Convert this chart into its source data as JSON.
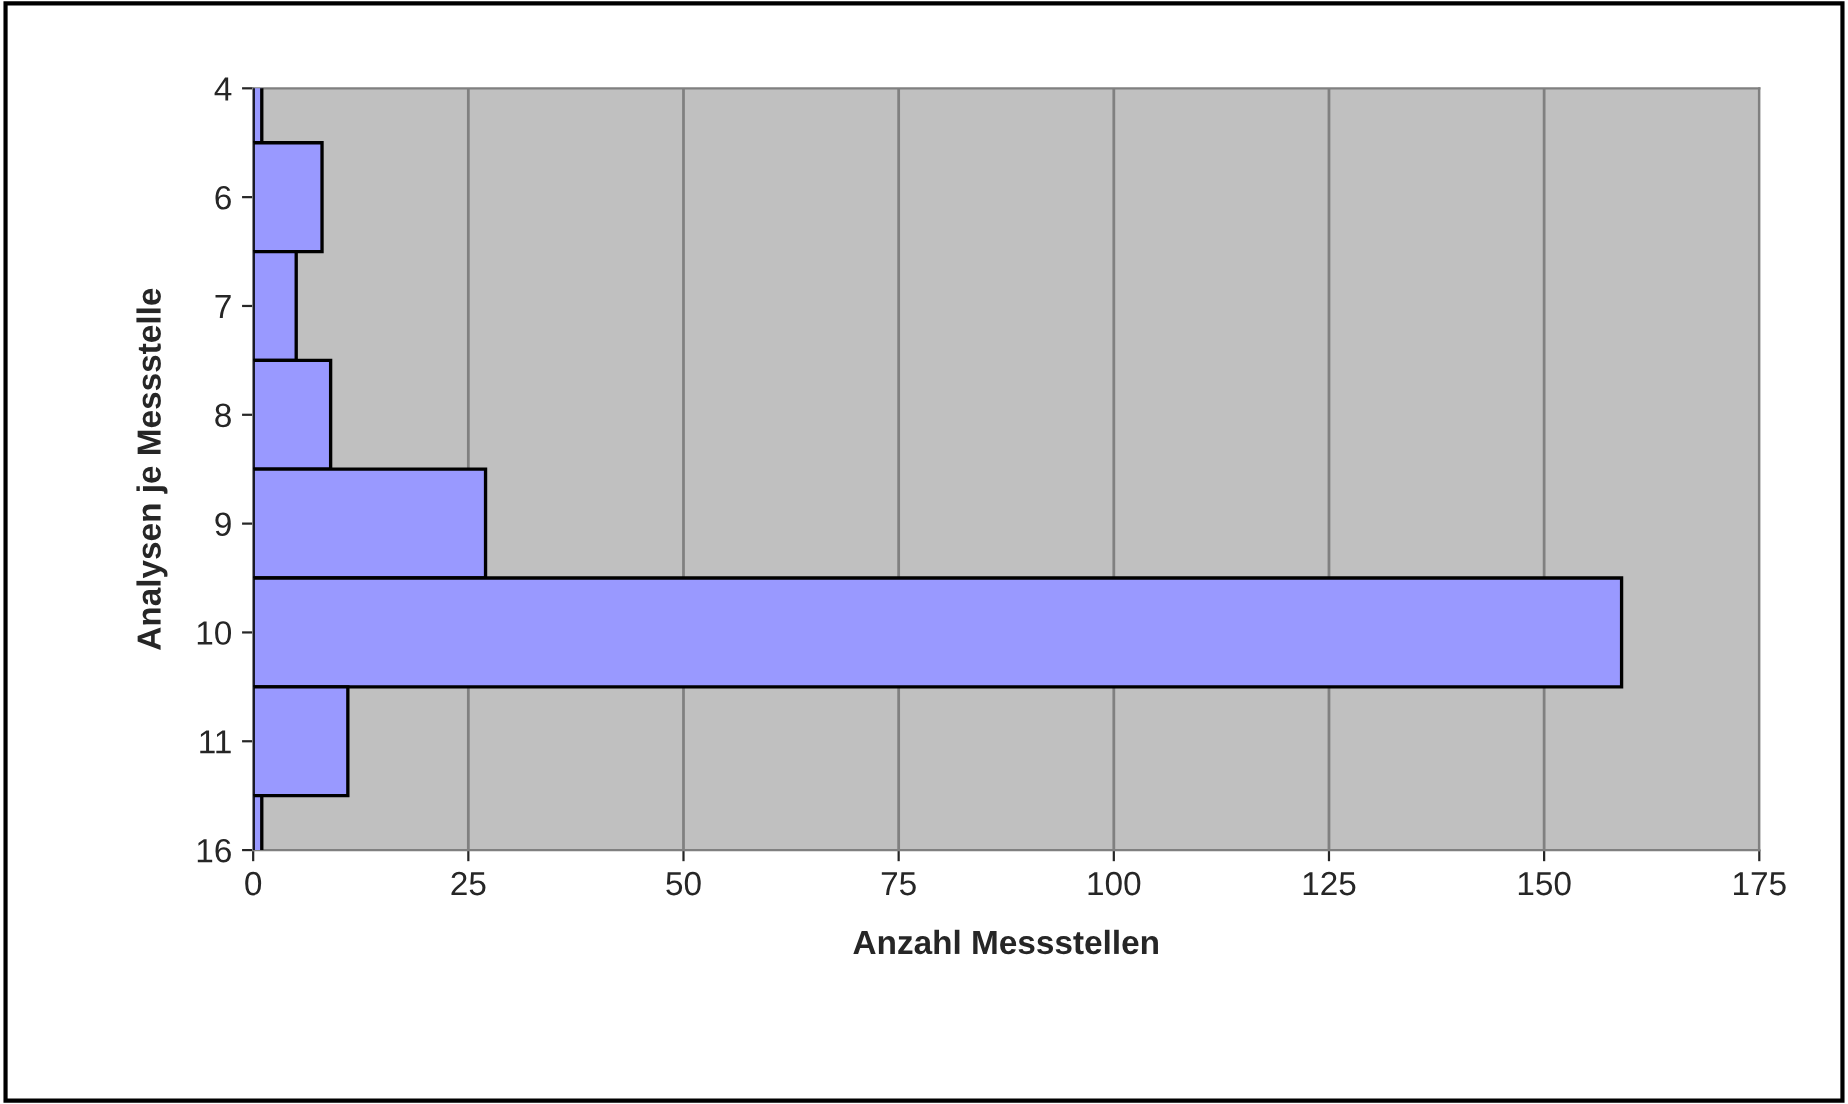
{
  "chart_data": {
    "type": "bar",
    "orientation": "horizontal",
    "xlabel": "Anzahl Messstellen",
    "ylabel": "Analysen je Messstelle",
    "categories": [
      "4",
      "6",
      "7",
      "8",
      "9",
      "10",
      "11",
      "16"
    ],
    "values": [
      1,
      8,
      5,
      9,
      27,
      159,
      11,
      1
    ],
    "color": "#9999ff",
    "xlim": [
      0,
      175
    ],
    "xticks": [
      0,
      25,
      50,
      75,
      100,
      125,
      150,
      175
    ],
    "grid": "x",
    "legend": false
  }
}
